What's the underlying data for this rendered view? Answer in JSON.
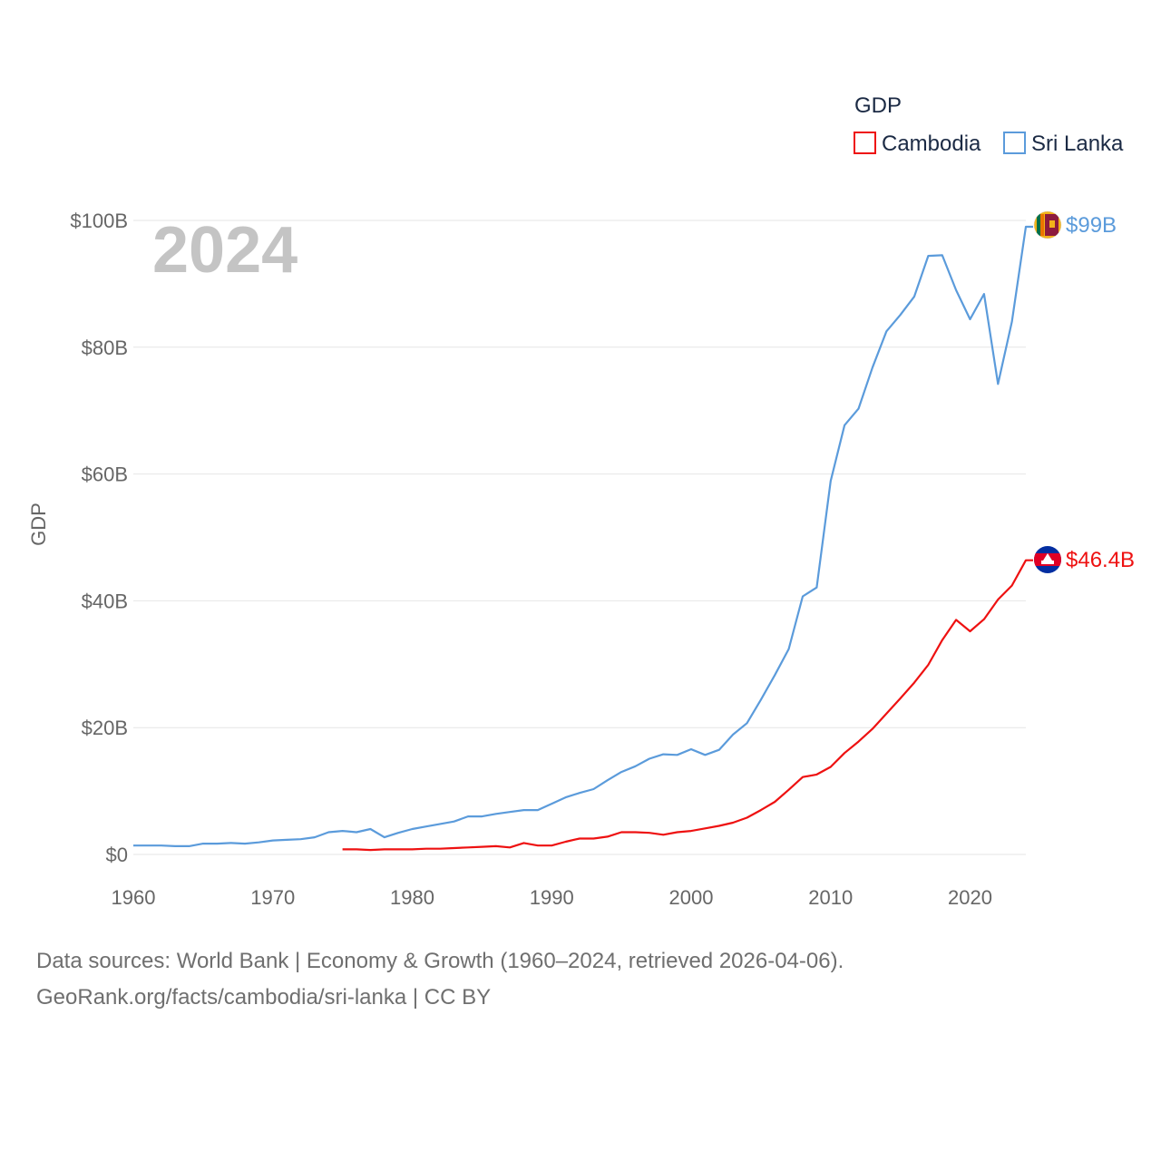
{
  "chart_data": {
    "type": "line",
    "ylabel": "GDP",
    "year_display": "2024",
    "ylim": [
      0,
      100
    ],
    "xlim": [
      1960,
      2024
    ],
    "y_ticks": [
      {
        "value": 0,
        "label": "$0"
      },
      {
        "value": 20,
        "label": "$20B"
      },
      {
        "value": 40,
        "label": "$40B"
      },
      {
        "value": 60,
        "label": "$60B"
      },
      {
        "value": 80,
        "label": "$80B"
      },
      {
        "value": 100,
        "label": "$100B"
      }
    ],
    "x_ticks": [
      {
        "value": 1960,
        "label": "1960"
      },
      {
        "value": 1970,
        "label": "1970"
      },
      {
        "value": 1980,
        "label": "1980"
      },
      {
        "value": 1990,
        "label": "1990"
      },
      {
        "value": 2000,
        "label": "2000"
      },
      {
        "value": 2010,
        "label": "2010"
      },
      {
        "value": 2020,
        "label": "2020"
      }
    ],
    "legend": {
      "title": "GDP",
      "placement": "top-right"
    },
    "series": [
      {
        "name": "Cambodia",
        "color": "#ee1111",
        "flag_icon": "cambodia-flag-icon",
        "end_label": "$46.4B",
        "start_year": 1975,
        "values": [
          0.8,
          0.8,
          0.7,
          0.8,
          0.8,
          0.8,
          0.9,
          0.9,
          1.0,
          1.1,
          1.2,
          1.3,
          1.1,
          1.8,
          1.4,
          1.4,
          2.0,
          2.5,
          2.5,
          2.8,
          3.5,
          3.5,
          3.4,
          3.1,
          3.5,
          3.7,
          4.1,
          4.5,
          5.0,
          5.8,
          7.0,
          8.3,
          10.2,
          12.2,
          12.6,
          13.8,
          16.0,
          17.8,
          19.8,
          22.2,
          24.6,
          27.1,
          29.9,
          33.8,
          37.0,
          35.2,
          37.1,
          40.2,
          42.4,
          46.4
        ]
      },
      {
        "name": "Sri Lanka",
        "color": "#5b9bdb",
        "flag_icon": "sri-lanka-flag-icon",
        "end_label": "$99B",
        "start_year": 1960,
        "values": [
          1.4,
          1.4,
          1.4,
          1.3,
          1.3,
          1.7,
          1.7,
          1.8,
          1.7,
          1.9,
          2.2,
          2.3,
          2.4,
          2.7,
          3.5,
          3.7,
          3.5,
          4.0,
          2.7,
          3.4,
          4.0,
          4.4,
          4.8,
          5.2,
          6.0,
          6.0,
          6.4,
          6.7,
          7.0,
          7.0,
          8.0,
          9.0,
          9.7,
          10.3,
          11.7,
          13.0,
          13.9,
          15.1,
          15.8,
          15.7,
          16.6,
          15.7,
          16.5,
          18.9,
          20.7,
          24.4,
          28.3,
          32.4,
          40.7,
          42.1,
          58.9,
          67.7,
          70.3,
          76.8,
          82.5,
          85.1,
          88.0,
          94.4,
          94.5,
          89.0,
          84.4,
          88.4,
          74.2,
          84.0,
          99.0
        ]
      }
    ]
  },
  "footer": {
    "line1": "Data sources: World Bank | Economy & Growth (1960–2024, retrieved 2026-04-06).",
    "line2": "GeoRank.org/facts/cambodia/sri-lanka | CC BY"
  }
}
